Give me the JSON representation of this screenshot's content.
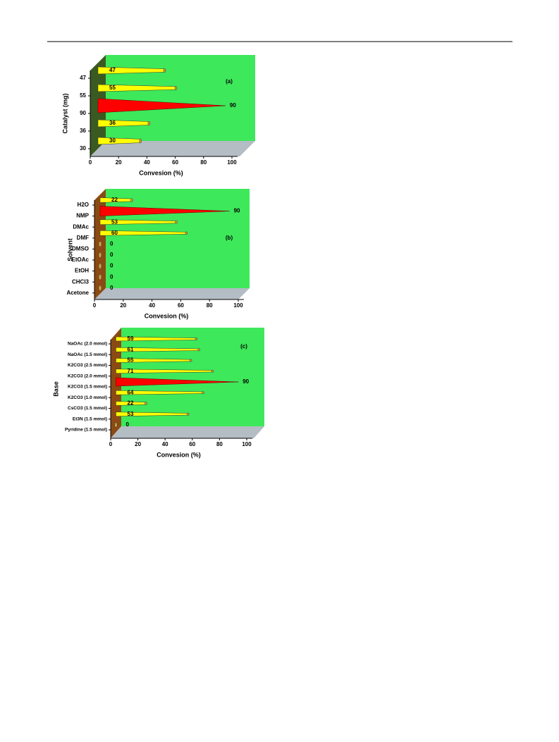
{
  "chart_data": [
    {
      "type": "bar",
      "panel": "(a)",
      "y_label": "Catalyst (mg)",
      "x_label": "Convesion (%)",
      "categories": [
        "47",
        "55",
        "90",
        "36",
        "30"
      ],
      "values": [
        47,
        55,
        90,
        36,
        30
      ],
      "colors": [
        "#ffff00",
        "#ffff00",
        "#ff0000",
        "#ffff00",
        "#ffff00"
      ],
      "xlim": [
        0,
        100
      ],
      "xticks": [
        0,
        20,
        40,
        60,
        80,
        100
      ],
      "wall_color": "#3de85b",
      "side_color": "#3b5a22",
      "floor_color": "#b4bcc4"
    },
    {
      "type": "bar",
      "panel": "(b)",
      "y_label": "Solvent",
      "x_label": "Convesion (%)",
      "categories": [
        "H2O",
        "NMP",
        "DMAc",
        "DMF",
        "DMSO",
        "EtOAc",
        "EtOH",
        "CHCl3",
        "Acetone"
      ],
      "values": [
        22,
        90,
        53,
        60,
        0,
        0,
        0,
        0,
        0
      ],
      "colors": [
        "#ffff00",
        "#ff0000",
        "#ffff00",
        "#ffff00",
        "#ffff00",
        "#ffff00",
        "#ffff00",
        "#ffff00",
        "#ffff00"
      ],
      "xlim": [
        0,
        100
      ],
      "xticks": [
        0,
        20,
        40,
        60,
        80,
        100
      ],
      "wall_color": "#3de85b",
      "side_color": "#8b4a14",
      "floor_color": "#b4bcc4"
    },
    {
      "type": "bar",
      "panel": "(c)",
      "y_label": "Base",
      "x_label": "Convesion (%)",
      "categories": [
        "NaOAc (2.0 mmol)",
        "NaOAc (1.5 mmol)",
        "K2CO3 (2.5 mmol)",
        "K2CO3 (2.0 mmol)",
        "K2CO3 (1.5 mmol)",
        "K2CO3 (1.0 mmol)",
        "CsCO3 (1.5 mmol)",
        "Et3N (1.5 mmol)",
        "Pyridine (1.5 mmol)"
      ],
      "values": [
        59,
        61,
        55,
        71,
        90,
        64,
        22,
        53,
        0
      ],
      "colors": [
        "#ffff00",
        "#ffff00",
        "#ffff00",
        "#ffff00",
        "#ff0000",
        "#ffff00",
        "#ffff00",
        "#ffff00",
        "#ffff00"
      ],
      "xlim": [
        0,
        100
      ],
      "xticks": [
        0,
        20,
        40,
        60,
        80,
        100
      ],
      "wall_color": "#3de85b",
      "side_color": "#8b4a14",
      "floor_color": "#b4bcc4"
    }
  ]
}
